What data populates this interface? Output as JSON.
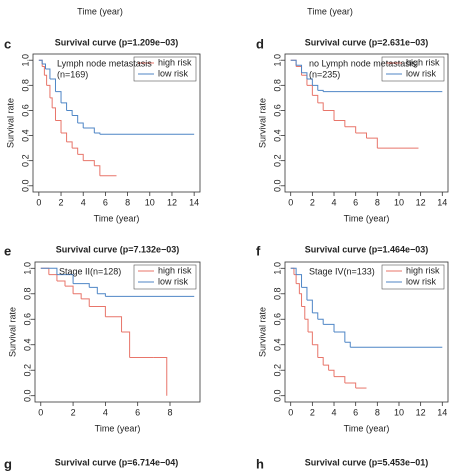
{
  "top_labels": [
    "Time (year)",
    "Time (year)"
  ],
  "chart_data": [
    {
      "type": "line",
      "step": "post",
      "letter": "c",
      "title": "Survival curve (p=1.209e−03)",
      "annotations": [
        "Lymph node metastasis",
        "(n=169)"
      ],
      "xlabel": "Time (year)",
      "ylabel": "Survival rate",
      "xlim": [
        0,
        14
      ],
      "ylim": [
        0,
        1
      ],
      "xticks": [
        0,
        2,
        4,
        6,
        8,
        10,
        12,
        14
      ],
      "yticks": [
        {
          "value": 0,
          "label": "0.0"
        },
        {
          "value": 0.2,
          "label": "0.2"
        },
        {
          "value": 0.4,
          "label": "0.4"
        },
        {
          "value": 0.6,
          "label": "0.6"
        },
        {
          "value": 0.8,
          "label": "0.8"
        },
        {
          "value": 1,
          "label": "1.0"
        }
      ],
      "series": [
        {
          "name": "high risk",
          "color": "#e8756a",
          "x": [
            0,
            0.3,
            0.5,
            0.7,
            1,
            1.2,
            1.5,
            2,
            2.5,
            3,
            3.5,
            4,
            5,
            5.5,
            7
          ],
          "values": [
            1,
            0.95,
            0.88,
            0.8,
            0.7,
            0.62,
            0.52,
            0.42,
            0.35,
            0.3,
            0.25,
            0.2,
            0.16,
            0.08,
            0.08
          ]
        },
        {
          "name": "low risk",
          "color": "#4f86c6",
          "x": [
            0,
            0.3,
            0.6,
            1,
            1.5,
            2,
            2.5,
            3,
            3.5,
            4,
            5,
            5.5,
            14
          ],
          "values": [
            1,
            0.97,
            0.93,
            0.85,
            0.75,
            0.66,
            0.6,
            0.56,
            0.5,
            0.46,
            0.42,
            0.41,
            0.41
          ]
        }
      ]
    },
    {
      "type": "line",
      "step": "post",
      "letter": "d",
      "title": "Survival curve (p=2.631e−03)",
      "annotations": [
        "no Lymph node metastasis",
        "(n=235)"
      ],
      "xlabel": "Time (year)",
      "ylabel": "Survival rate",
      "xlim": [
        0,
        14
      ],
      "ylim": [
        0,
        1
      ],
      "xticks": [
        0,
        2,
        4,
        6,
        8,
        10,
        12,
        14
      ],
      "yticks": [
        {
          "value": 0,
          "label": "0.0"
        },
        {
          "value": 0.2,
          "label": "0.2"
        },
        {
          "value": 0.4,
          "label": "0.4"
        },
        {
          "value": 0.6,
          "label": "0.6"
        },
        {
          "value": 0.8,
          "label": "0.8"
        },
        {
          "value": 1,
          "label": "1.0"
        }
      ],
      "series": [
        {
          "name": "high risk",
          "color": "#e8756a",
          "x": [
            0,
            0.5,
            1,
            1.5,
            2,
            2.5,
            3,
            4,
            5,
            6,
            7,
            8,
            10,
            11.8
          ],
          "values": [
            1,
            0.95,
            0.88,
            0.8,
            0.72,
            0.66,
            0.6,
            0.52,
            0.47,
            0.42,
            0.38,
            0.3,
            0.3,
            0.3
          ]
        },
        {
          "name": "low risk",
          "color": "#4f86c6",
          "x": [
            0,
            0.5,
            1,
            1.5,
            2,
            2.5,
            3,
            14
          ],
          "values": [
            1,
            0.96,
            0.9,
            0.85,
            0.8,
            0.76,
            0.75,
            0.75
          ]
        }
      ]
    },
    {
      "type": "line",
      "step": "post",
      "letter": "e",
      "title": "Survival curve (p=7.132e−03)",
      "annotations": [
        "Stage II(n=128)"
      ],
      "xlabel": "Time (year)",
      "ylabel": "Survival rate",
      "xlim": [
        0,
        9.5
      ],
      "ylim": [
        0,
        1
      ],
      "xticks": [
        0,
        2,
        4,
        6,
        8
      ],
      "yticks": [
        {
          "value": 0,
          "label": "0.0"
        },
        {
          "value": 0.2,
          "label": "0.2"
        },
        {
          "value": 0.4,
          "label": "0.4"
        },
        {
          "value": 0.6,
          "label": "0.6"
        },
        {
          "value": 0.8,
          "label": "0.8"
        },
        {
          "value": 1,
          "label": "1.0"
        }
      ],
      "series": [
        {
          "name": "high risk",
          "color": "#e8756a",
          "x": [
            0,
            0.5,
            1,
            1.5,
            2,
            2.5,
            3,
            4,
            5,
            5.5,
            7,
            7.8
          ],
          "values": [
            1,
            0.95,
            0.9,
            0.86,
            0.8,
            0.76,
            0.7,
            0.62,
            0.5,
            0.3,
            0.3,
            0
          ]
        },
        {
          "name": "low risk",
          "color": "#4f86c6",
          "x": [
            0,
            1,
            2,
            3,
            3.5,
            4,
            9.5
          ],
          "values": [
            1,
            0.95,
            0.88,
            0.85,
            0.8,
            0.78,
            0.78
          ]
        }
      ]
    },
    {
      "type": "line",
      "step": "post",
      "letter": "f",
      "title": "Survival curve (p=1.464e−03)",
      "annotations": [
        "Stage IV(n=133)"
      ],
      "xlabel": "Time (year)",
      "ylabel": "Survival rate",
      "xlim": [
        0,
        14
      ],
      "ylim": [
        0,
        1
      ],
      "xticks": [
        0,
        2,
        4,
        6,
        8,
        10,
        12,
        14
      ],
      "yticks": [
        {
          "value": 0,
          "label": "0.0"
        },
        {
          "value": 0.2,
          "label": "0.2"
        },
        {
          "value": 0.4,
          "label": "0.4"
        },
        {
          "value": 0.6,
          "label": "0.6"
        },
        {
          "value": 0.8,
          "label": "0.8"
        },
        {
          "value": 1,
          "label": "1.0"
        }
      ],
      "series": [
        {
          "name": "high risk",
          "color": "#e8756a",
          "x": [
            0,
            0.3,
            0.5,
            0.8,
            1,
            1.3,
            1.6,
            2,
            2.5,
            3,
            3.5,
            4,
            5,
            6,
            7
          ],
          "values": [
            1,
            0.95,
            0.88,
            0.8,
            0.7,
            0.6,
            0.5,
            0.4,
            0.3,
            0.24,
            0.2,
            0.15,
            0.1,
            0.06,
            0.06
          ]
        },
        {
          "name": "low risk",
          "color": "#4f86c6",
          "x": [
            0,
            0.5,
            1,
            1.5,
            2,
            2.5,
            3,
            4,
            5,
            5.5,
            14
          ],
          "values": [
            1,
            0.95,
            0.85,
            0.75,
            0.65,
            0.6,
            0.56,
            0.5,
            0.42,
            0.38,
            0.38
          ]
        }
      ]
    }
  ],
  "partial_panels": [
    {
      "letter": "g",
      "title": "Survival curve (p=6.714e−04)"
    },
    {
      "letter": "h",
      "title": "Survival curve (p=5.453e−01)"
    }
  ]
}
